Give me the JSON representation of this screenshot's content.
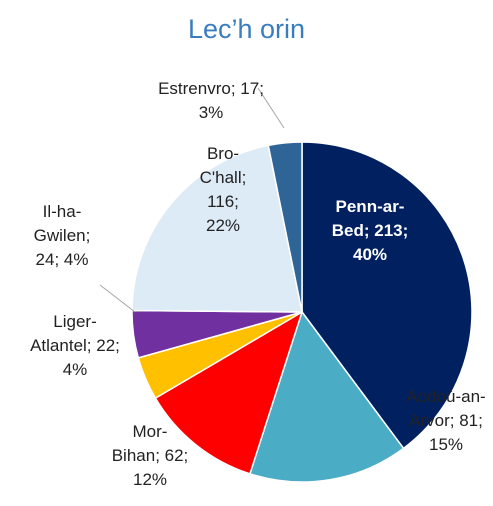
{
  "chart_data": {
    "type": "pie",
    "title": "Lec’h orin",
    "categories": [
      "Penn-ar-Bed",
      "Aodoù-an-Arvor",
      "Mor-Bihan",
      "Liger-Atlantel",
      "Il-ha-Gwilen",
      "Bro-C'hall",
      "Estrenvro"
    ],
    "values": [
      213,
      81,
      62,
      22,
      24,
      116,
      17
    ],
    "value_labels": [
      "213; 40%",
      "81; 15%",
      "62; 12%",
      "22; 4%",
      "24; 4%",
      "116; 22%",
      "17; 3%"
    ],
    "label_separator": "; ",
    "colors": [
      "#002060",
      "#4bacc6",
      "#ff0000",
      "#ffc000",
      "#7030a0",
      "#ddebf7",
      "#2e6596"
    ]
  }
}
